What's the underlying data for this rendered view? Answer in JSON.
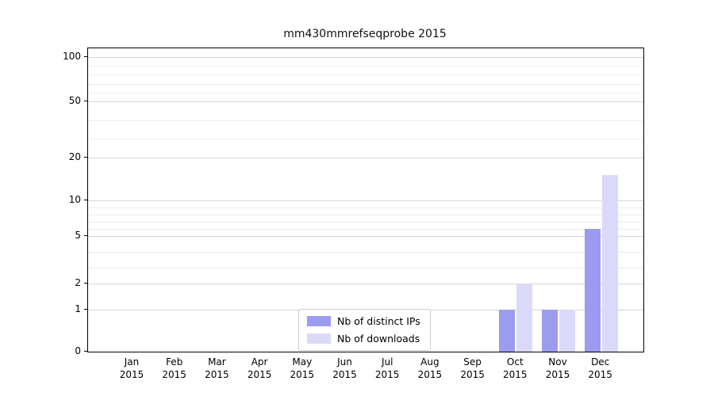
{
  "title": "mm430mmrefseqprobe 2015",
  "chart_data": {
    "type": "bar",
    "title": "mm430mmrefseqprobe 2015",
    "categories": [
      "Jan 2015",
      "Feb 2015",
      "Mar 2015",
      "Apr 2015",
      "May 2015",
      "Jun 2015",
      "Jul 2015",
      "Aug 2015",
      "Sep 2015",
      "Oct 2015",
      "Nov 2015",
      "Dec 2015"
    ],
    "series": [
      {
        "name": "Nb of distinct IPs",
        "color": "#9b9bef",
        "values": [
          0,
          0,
          0,
          0,
          0,
          0,
          0,
          0,
          0,
          1,
          1,
          6
        ]
      },
      {
        "name": "Nb of downloads",
        "color": "#dadaf8",
        "values": [
          0,
          0,
          0,
          0,
          0,
          0,
          0,
          0,
          0,
          2,
          1,
          16
        ]
      }
    ],
    "xlabel": "",
    "ylabel": "",
    "ylim": [
      0,
      100
    ],
    "yscale": "log-like",
    "y_ticks": [
      0,
      1,
      2,
      5,
      10,
      20,
      50,
      100
    ],
    "y_minor_ticks": [
      3,
      4,
      6,
      7,
      8,
      9,
      30,
      40,
      60,
      70,
      80,
      90
    ],
    "grid": true,
    "legend_position": "lower center"
  },
  "legend": {
    "items": [
      {
        "label": "Nb of distinct IPs",
        "color": "#9b9bef"
      },
      {
        "label": "Nb of downloads",
        "color": "#dadaf8"
      }
    ]
  }
}
